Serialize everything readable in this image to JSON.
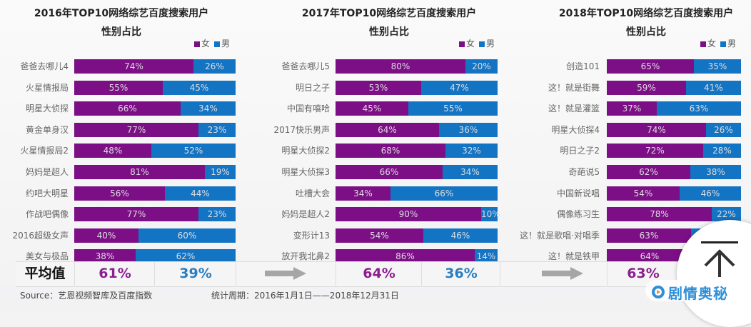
{
  "colors": {
    "female": "#7c0f86",
    "male": "#1474c4",
    "arrow": "#a6a6a6",
    "avg_female": "#8b1f8f",
    "avg_male": "#2b7dc0"
  },
  "legend": {
    "female": "女",
    "male": "男"
  },
  "chart_data": [
    {
      "type": "bar",
      "stacked": "horizontal-100%",
      "title": "2016年TOP10网络综艺百度搜索用户",
      "subtitle": "性别占比",
      "legend_position": "top-right",
      "categories": [
        "爸爸去哪儿4",
        "火星情报局",
        "明星大侦探",
        "黄金单身汉",
        "火星情报局2",
        "妈妈是超人",
        "约吧大明星",
        "作战吧偶像",
        "2016超级女声",
        "美女与极品"
      ],
      "series": [
        {
          "name": "女",
          "values": [
            74,
            55,
            66,
            77,
            48,
            81,
            56,
            77,
            40,
            38
          ]
        },
        {
          "name": "男",
          "values": [
            26,
            45,
            34,
            23,
            52,
            19,
            44,
            23,
            60,
            62
          ]
        }
      ],
      "average": {
        "female": "61%",
        "male": "39%"
      }
    },
    {
      "type": "bar",
      "stacked": "horizontal-100%",
      "title": "2017年TOP10网络综艺百度搜索用户",
      "subtitle": "性别占比",
      "legend_position": "top-right",
      "categories": [
        "爸爸去哪儿5",
        "明日之子",
        "中国有嘻哈",
        "2017快乐男声",
        "明星大侦探2",
        "明星大侦探3",
        "吐槽大会",
        "妈妈是超人2",
        "变形计13",
        "放开我北鼻2"
      ],
      "series": [
        {
          "name": "女",
          "values": [
            80,
            53,
            45,
            64,
            68,
            66,
            34,
            90,
            54,
            86
          ]
        },
        {
          "name": "男",
          "values": [
            20,
            47,
            55,
            36,
            32,
            34,
            66,
            10,
            46,
            14
          ]
        }
      ],
      "average": {
        "female": "64%",
        "male": "36%"
      }
    },
    {
      "type": "bar",
      "stacked": "horizontal-100%",
      "title": "2018年TOP10网络综艺百度搜索用户",
      "subtitle": "性别占比",
      "legend_position": "top-right",
      "categories": [
        "创造101",
        "这！就是街舞",
        "这！就是灌篮",
        "明星大侦探4",
        "明日之子2",
        "奇葩说5",
        "中国新说唱",
        "偶像练习生",
        "这！就是歌唱·对唱季",
        "这！就是铁甲"
      ],
      "series": [
        {
          "name": "女",
          "values": [
            65,
            59,
            37,
            74,
            72,
            62,
            54,
            78,
            63,
            64
          ]
        },
        {
          "name": "男",
          "values": [
            35,
            41,
            63,
            26,
            28,
            38,
            46,
            22,
            37,
            36
          ]
        }
      ],
      "average": {
        "female": "63%",
        "male": ""
      }
    }
  ],
  "avg_label": "平均值",
  "footer": {
    "source": "Source：艺恩视频智库及百度指数",
    "period": "统计周期：2016年1月1日——2018年12月31日"
  },
  "watermark": {
    "text": "剧情奥秘"
  }
}
